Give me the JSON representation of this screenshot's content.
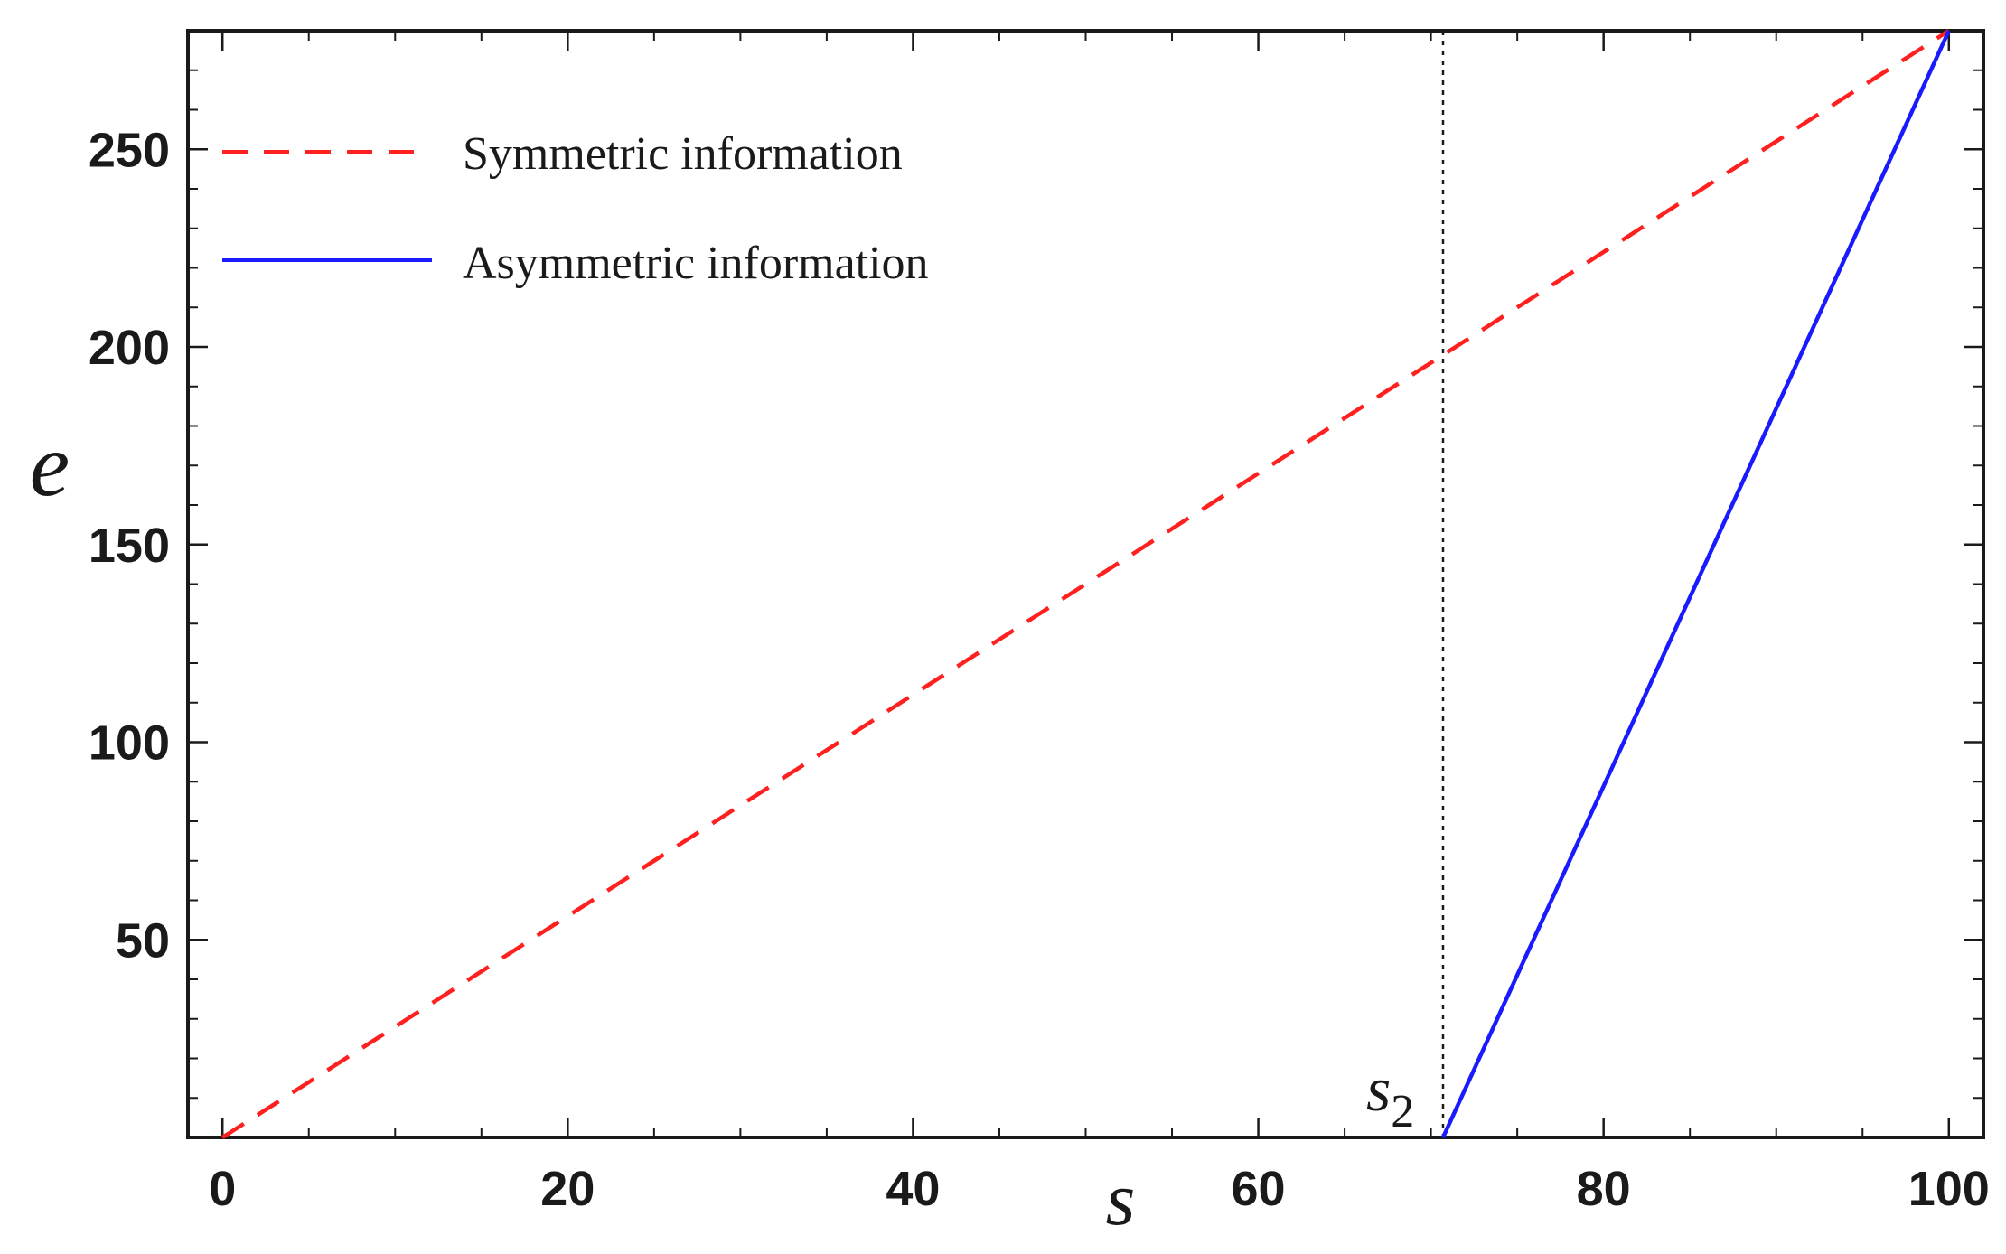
{
  "chart_data": {
    "type": "line",
    "xlabel": "s",
    "ylabel": "e",
    "xlim": [
      -2,
      102
    ],
    "ylim": [
      0,
      280
    ],
    "x_ticks": [
      0,
      20,
      40,
      60,
      80,
      100
    ],
    "y_ticks": [
      50,
      100,
      150,
      200,
      250
    ],
    "x_tick_labels": [
      "0",
      "20",
      "40",
      "60",
      "80",
      "100"
    ],
    "y_tick_labels": [
      "50",
      "100",
      "150",
      "200",
      "250"
    ],
    "x_minor_step": 5,
    "y_minor_step": 10,
    "grid": false,
    "legend_position": "top-left",
    "series": [
      {
        "name": "Symmetric information",
        "style": "dashed",
        "color": "#ff2020",
        "x": [
          0,
          100
        ],
        "y": [
          0,
          280
        ]
      },
      {
        "name": "Asymmetric information",
        "style": "solid",
        "color": "#1a1aff",
        "x": [
          70.7,
          100
        ],
        "y": [
          0,
          280
        ]
      }
    ],
    "reference_lines": [
      {
        "axis": "x",
        "value": 70.7,
        "style": "dotted",
        "color": "#1a1a1a",
        "label": "s",
        "label_subscript": "2"
      }
    ]
  }
}
